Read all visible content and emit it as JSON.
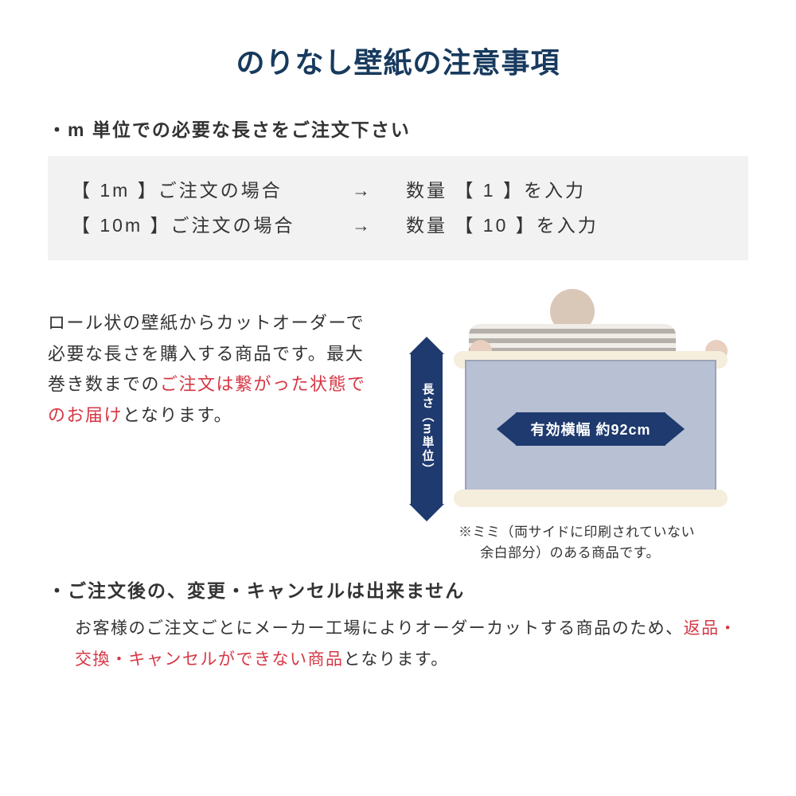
{
  "colors": {
    "title": "#173a5e",
    "text": "#333333",
    "accent_red": "#d63744",
    "box_bg": "#f2f2f2",
    "arrow_navy": "#1e3a6e",
    "sheet_fill": "#b8c0d4",
    "roll_bar": "#f5eedd",
    "background": "#ffffff"
  },
  "title": "のりなし壁紙の注意事項",
  "bullet1": "・m 単位での必要な長さをご注文下さい",
  "order_rows": [
    {
      "left": "【 1m 】ご注文の場合",
      "arrow": "→",
      "right": "数量 【 1 】を入力"
    },
    {
      "left": "【 10m 】ご注文の場合",
      "arrow": "→",
      "right": "数量 【 10 】を入力"
    }
  ],
  "mid_text": {
    "p1": "ロール状の壁紙からカットオーダーで必要な長さを購入する商品です。最大巻き数までの",
    "p1_red": "ご注文は繋がった状態でのお届け",
    "p1_after": "となります。"
  },
  "diagram": {
    "width_label": "有効横幅 約92cm",
    "length_label": "長さ（m単位）",
    "mimi_line1": "※ミミ（両サイドに印刷されていない",
    "mimi_line2": "余白部分）のある商品です。"
  },
  "bullet2": "・ご注文後の、変更・キャンセルは出来ません",
  "note2": {
    "before": "お客様のご注文ごとにメーカー工場によりオーダーカットする商品のため、",
    "red": "返品・交換・キャンセルができない商品",
    "after": "となります。"
  }
}
